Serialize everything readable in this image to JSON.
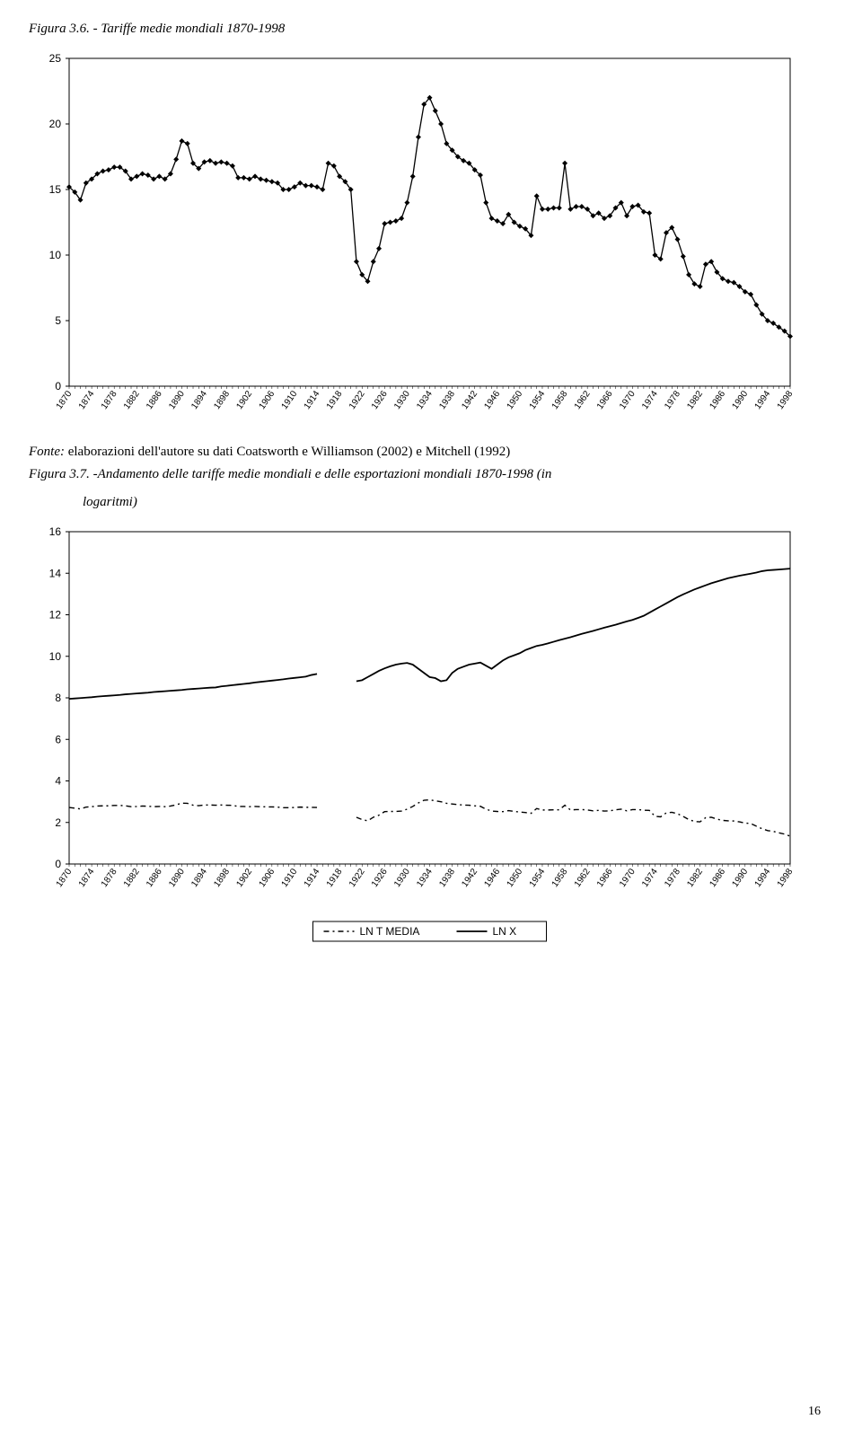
{
  "figure1": {
    "caption": "Figura 3.6. - Tariffe medie mondiali 1870-1998",
    "type": "line",
    "x_start": 1870,
    "x_end": 1998,
    "x_tick_step": 4,
    "ylim": [
      0,
      25
    ],
    "ytick_step": 5,
    "series_color": "#000000",
    "marker": "diamond",
    "marker_size": 6,
    "line_width": 1.3,
    "background_color": "#ffffff",
    "border_color": "#000000",
    "grid": false,
    "label_fontsize": 10,
    "ylabel_fontsize": 12,
    "data": [
      15.2,
      14.8,
      14.2,
      15.5,
      15.8,
      16.2,
      16.4,
      16.5,
      16.7,
      16.7,
      16.4,
      15.8,
      16.0,
      16.2,
      16.1,
      15.8,
      16.0,
      15.8,
      16.2,
      17.3,
      18.7,
      18.5,
      17.0,
      16.6,
      17.1,
      17.2,
      17.0,
      17.1,
      17.0,
      16.8,
      15.9,
      15.9,
      15.8,
      16.0,
      15.8,
      15.7,
      15.6,
      15.5,
      15.0,
      15.0,
      15.2,
      15.5,
      15.3,
      15.3,
      15.2,
      15.0,
      17.0,
      16.8,
      16.0,
      15.6,
      15.0,
      9.5,
      8.5,
      8.0,
      9.5,
      10.5,
      12.4,
      12.5,
      12.6,
      12.8,
      14.0,
      16.0,
      19.0,
      21.5,
      22.0,
      21.0,
      20.0,
      18.5,
      18.0,
      17.5,
      17.2,
      17.0,
      16.5,
      16.1,
      14.0,
      12.8,
      12.6,
      12.4,
      13.1,
      12.5,
      12.2,
      12.0,
      11.5,
      14.5,
      13.5,
      13.5,
      13.6,
      13.6,
      17.0,
      13.5,
      13.7,
      13.7,
      13.5,
      13.0,
      13.2,
      12.8,
      13.0,
      13.6,
      14.0,
      13.0,
      13.7,
      13.8,
      13.3,
      13.2,
      10.0,
      9.7,
      11.7,
      12.1,
      11.2,
      9.9,
      8.5,
      7.8,
      7.6,
      9.3,
      9.5,
      8.7,
      8.2,
      8.0,
      7.9,
      7.6,
      7.2,
      7.0,
      6.2,
      5.5,
      5.0,
      4.8,
      4.5,
      4.2,
      3.8
    ]
  },
  "source_text": "Fonte: elaborazioni dell'autore su dati Coatsworth e Williamson (2002) e Mitchell (1992)",
  "source_label": "Fonte:",
  "source_body": " elaborazioni dell'autore su dati Coatsworth e Williamson (2002) e Mitchell (1992)",
  "figure2": {
    "caption": "Figura 3.7. -Andamento delle tariffe medie mondiali e delle esportazioni mondiali 1870-1998 (in logaritmi)",
    "caption_line1": "Figura 3.7. -Andamento delle tariffe medie mondiali e delle esportazioni mondiali 1870-1998 (in",
    "caption_line2": "logaritmi)",
    "type": "line",
    "x_start": 1870,
    "x_end": 1998,
    "x_tick_step": 4,
    "ylim": [
      0,
      16
    ],
    "ytick_step": 2,
    "background_color": "#ffffff",
    "border_color": "#000000",
    "legend_border_color": "#000000",
    "series": [
      {
        "name": "LN T MEDIA",
        "color": "#000000",
        "line_width": 1.4,
        "dash": "6,4,2,4",
        "break_from": 1914,
        "break_to": 1921,
        "data": [
          2.72,
          2.69,
          2.65,
          2.74,
          2.76,
          2.79,
          2.8,
          2.8,
          2.82,
          2.82,
          2.8,
          2.76,
          2.77,
          2.79,
          2.78,
          2.76,
          2.77,
          2.76,
          2.79,
          2.85,
          2.93,
          2.92,
          2.83,
          2.81,
          2.84,
          2.84,
          2.83,
          2.84,
          2.83,
          2.82,
          2.77,
          2.77,
          2.76,
          2.77,
          2.76,
          2.75,
          2.75,
          2.74,
          2.71,
          2.71,
          2.72,
          2.74,
          2.73,
          2.73,
          2.72,
          2.71,
          2.83,
          2.82,
          2.77,
          2.75,
          2.71,
          2.25,
          2.14,
          2.08,
          2.25,
          2.35,
          2.52,
          2.53,
          2.53,
          2.55,
          2.64,
          2.77,
          2.94,
          3.07,
          3.09,
          3.04,
          3.0,
          2.92,
          2.89,
          2.86,
          2.84,
          2.83,
          2.8,
          2.78,
          2.64,
          2.55,
          2.53,
          2.52,
          2.57,
          2.53,
          2.5,
          2.48,
          2.44,
          2.67,
          2.6,
          2.6,
          2.61,
          2.61,
          2.83,
          2.6,
          2.62,
          2.62,
          2.6,
          2.56,
          2.58,
          2.55,
          2.56,
          2.61,
          2.64,
          2.56,
          2.62,
          2.62,
          2.59,
          2.58,
          2.3,
          2.27,
          2.46,
          2.49,
          2.42,
          2.29,
          2.14,
          2.05,
          2.03,
          2.23,
          2.25,
          2.16,
          2.1,
          2.08,
          2.07,
          2.03,
          1.97,
          1.95,
          1.82,
          1.7,
          1.61,
          1.57,
          1.5,
          1.44,
          1.34
        ]
      },
      {
        "name": "LN X",
        "color": "#000000",
        "line_width": 1.8,
        "dash": "",
        "break_from": 1914,
        "break_to": 1921,
        "data": [
          7.95,
          7.97,
          7.99,
          8.01,
          8.03,
          8.06,
          8.08,
          8.1,
          8.12,
          8.14,
          8.17,
          8.19,
          8.21,
          8.23,
          8.25,
          8.28,
          8.3,
          8.32,
          8.34,
          8.36,
          8.38,
          8.41,
          8.43,
          8.45,
          8.47,
          8.49,
          8.5,
          8.55,
          8.58,
          8.61,
          8.64,
          8.67,
          8.7,
          8.74,
          8.77,
          8.8,
          8.83,
          8.86,
          8.89,
          8.93,
          8.96,
          8.99,
          9.02,
          9.1,
          9.15,
          9.12,
          9.1,
          9.08,
          9.06,
          9.04,
          9.02,
          8.8,
          8.85,
          9.0,
          9.15,
          9.3,
          9.42,
          9.52,
          9.6,
          9.65,
          9.68,
          9.6,
          9.4,
          9.2,
          9.0,
          8.95,
          8.8,
          8.85,
          9.2,
          9.4,
          9.5,
          9.6,
          9.65,
          9.7,
          9.55,
          9.4,
          9.6,
          9.8,
          9.95,
          10.05,
          10.15,
          10.3,
          10.4,
          10.5,
          10.55,
          10.62,
          10.7,
          10.78,
          10.85,
          10.92,
          11.0,
          11.08,
          11.15,
          11.22,
          11.3,
          11.38,
          11.45,
          11.52,
          11.6,
          11.68,
          11.75,
          11.85,
          11.95,
          12.1,
          12.25,
          12.4,
          12.55,
          12.7,
          12.85,
          12.98,
          13.1,
          13.22,
          13.32,
          13.42,
          13.52,
          13.6,
          13.68,
          13.76,
          13.82,
          13.88,
          13.93,
          13.98,
          14.03,
          14.1,
          14.14,
          14.16,
          14.18,
          14.2,
          14.22
        ]
      }
    ]
  },
  "page_number": "16"
}
